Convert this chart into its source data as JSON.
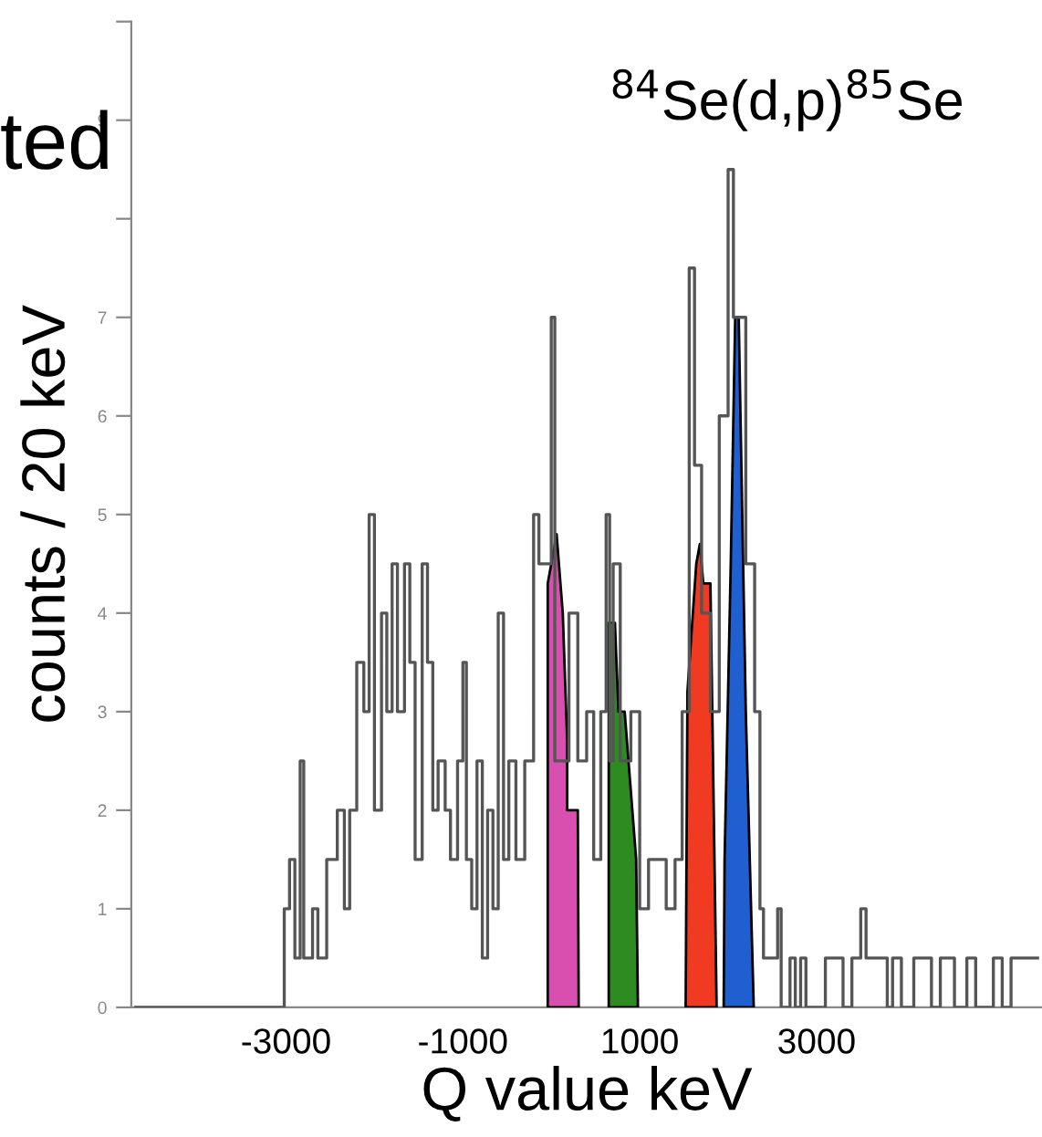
{
  "chart_data": {
    "type": "step",
    "title": "$^{84}$Se(d,p)$^{85}$Se",
    "xlabel": "Q value keV",
    "ylabel": "counts / 20 keV",
    "annotations": [
      "ted"
    ],
    "xlim": [
      -4750,
      5550
    ],
    "xticks": [
      -3000,
      -1000,
      1000,
      3000
    ],
    "ylim": [
      0,
      10
    ],
    "yticks": [
      0,
      1,
      2,
      3,
      4,
      5,
      6,
      7,
      {
        "value": 8,
        "label": null
      },
      9,
      {
        "value": 10,
        "label": null
      }
    ],
    "grid": false,
    "legend": false,
    "series": [
      {
        "color": "#555555",
        "x": [
          -4700,
          -3020,
          -2960,
          -2900,
          -2840,
          -2800,
          -2700,
          -2640,
          -2540,
          -2420,
          -2340,
          -2280,
          -2200,
          -2120,
          -2060,
          -2000,
          -1920,
          -1860,
          -1800,
          -1740,
          -1660,
          -1600,
          -1540,
          -1460,
          -1400,
          -1340,
          -1280,
          -1200,
          -1140,
          -1060,
          -1000,
          -960,
          -900,
          -840,
          -780,
          -720,
          -660,
          -600,
          -540,
          -480,
          -400,
          -300,
          -200,
          -140,
          0,
          40,
          200,
          300,
          400,
          480,
          560,
          620,
          660,
          700,
          780,
          900,
          1000,
          1100,
          1240,
          1300,
          1400,
          1480,
          1560,
          1620,
          1700,
          1800,
          1900,
          2000,
          2060,
          2200,
          2300,
          2360,
          2400,
          2560,
          2600,
          2700,
          2760,
          2820,
          2880,
          3100,
          3300,
          3400,
          3500,
          3560,
          3800,
          3860,
          3960,
          4100,
          4300,
          4400,
          4560,
          4700,
          4800,
          5000,
          5100,
          5200,
          5500
        ],
        "values": [
          0,
          1,
          1.5,
          0.5,
          2.5,
          0.5,
          1,
          0.5,
          1.5,
          2,
          1,
          2,
          3.5,
          3,
          5,
          2,
          4,
          3,
          4.5,
          3,
          4.5,
          3.5,
          1.5,
          4.5,
          3.5,
          2,
          2.5,
          2,
          1.5,
          2.5,
          3.5,
          1.5,
          1,
          2.5,
          0.5,
          2,
          1,
          4,
          1.5,
          2.5,
          1.5,
          2.5,
          5,
          4.5,
          7,
          2.5,
          4,
          2.5,
          3,
          1.5,
          3,
          5,
          2.5,
          4.5,
          2.5,
          3,
          1,
          1.5,
          1.5,
          1,
          1.5,
          3,
          7.5,
          5.5,
          4,
          3,
          6,
          8.5,
          7,
          4.5,
          3,
          1,
          0.5,
          1,
          0,
          0.5,
          0,
          0.5,
          0,
          0.5,
          0,
          0.5,
          1,
          0.5,
          0,
          0.5,
          0,
          0.5,
          0,
          0.5,
          0,
          0.5,
          0,
          0.5,
          0,
          0.5,
          0.5
        ]
      },
      {
        "type": "area",
        "color": "#d84fb0",
        "x": [
          -40,
          -40,
          60,
          130,
          180,
          180,
          300,
          310
        ],
        "values": [
          0,
          4.3,
          4.8,
          4.0,
          2.7,
          2.0,
          2.0,
          0
        ]
      },
      {
        "type": "area",
        "color": "#2e8b22",
        "x": [
          650,
          650,
          720,
          760,
          830,
          960,
          980
        ],
        "values": [
          0,
          3.9,
          3.9,
          3.0,
          3.0,
          1.5,
          0
        ]
      },
      {
        "type": "area",
        "color": "#f03a22",
        "x": [
          1520,
          1540,
          1640,
          1680,
          1720,
          1800,
          1870
        ],
        "values": [
          0,
          3.2,
          4.5,
          4.7,
          4.3,
          4.3,
          0
        ]
      },
      {
        "type": "area",
        "color": "#1f5fd0",
        "x": [
          1950,
          1960,
          2030,
          2080,
          2120,
          2200,
          2290
        ],
        "values": [
          0,
          1.5,
          4.5,
          7,
          7,
          3,
          0
        ]
      }
    ]
  }
}
